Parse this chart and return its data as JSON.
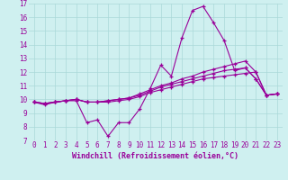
{
  "xlabel": "Windchill (Refroidissement éolien,°C)",
  "background_color": "#cff0f0",
  "grid_color": "#aad8d8",
  "line_color": "#990099",
  "x_values": [
    0,
    1,
    2,
    3,
    4,
    5,
    6,
    7,
    8,
    9,
    10,
    11,
    12,
    13,
    14,
    15,
    16,
    17,
    18,
    19,
    20,
    21,
    22,
    23
  ],
  "series1": [
    9.8,
    9.6,
    9.8,
    9.9,
    9.9,
    8.3,
    8.5,
    7.3,
    8.3,
    8.3,
    9.3,
    10.8,
    12.5,
    11.7,
    14.5,
    16.5,
    16.8,
    15.6,
    14.3,
    12.1,
    12.3,
    11.5,
    10.3,
    10.4
  ],
  "series2": [
    9.8,
    9.7,
    9.8,
    9.9,
    10.0,
    9.8,
    9.8,
    9.8,
    9.9,
    10.0,
    10.2,
    10.5,
    10.7,
    10.9,
    11.1,
    11.3,
    11.5,
    11.6,
    11.7,
    11.8,
    11.9,
    12.0,
    10.3,
    10.4
  ],
  "series3": [
    9.8,
    9.7,
    9.8,
    9.9,
    10.0,
    9.8,
    9.8,
    9.9,
    10.0,
    10.1,
    10.3,
    10.6,
    10.9,
    11.1,
    11.3,
    11.5,
    11.7,
    11.9,
    12.1,
    12.2,
    12.3,
    11.5,
    10.3,
    10.4
  ],
  "series4": [
    9.8,
    9.7,
    9.8,
    9.9,
    10.0,
    9.8,
    9.8,
    9.9,
    10.0,
    10.1,
    10.4,
    10.7,
    11.0,
    11.2,
    11.5,
    11.7,
    12.0,
    12.2,
    12.4,
    12.6,
    12.8,
    12.0,
    10.3,
    10.4
  ],
  "ylim": [
    7,
    17
  ],
  "xlim_min": -0.5,
  "xlim_max": 23.5,
  "yticks": [
    7,
    8,
    9,
    10,
    11,
    12,
    13,
    14,
    15,
    16,
    17
  ],
  "xticks": [
    0,
    1,
    2,
    3,
    4,
    5,
    6,
    7,
    8,
    9,
    10,
    11,
    12,
    13,
    14,
    15,
    16,
    17,
    18,
    19,
    20,
    21,
    22,
    23
  ],
  "tick_fontsize": 5.5,
  "xlabel_fontsize": 6.0
}
